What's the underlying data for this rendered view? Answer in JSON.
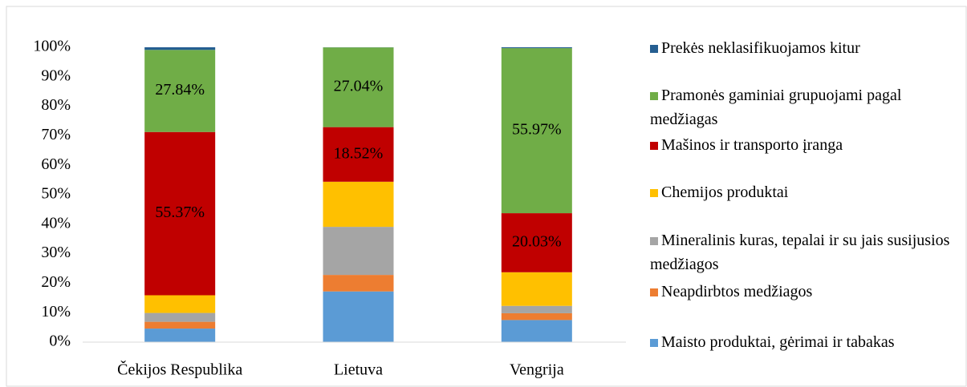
{
  "chart_data": {
    "type": "stacked_bar_100",
    "categories": [
      "Čekijos Respublika",
      "Lietuva",
      "Vengrija"
    ],
    "series": [
      {
        "name": "Maisto produktai, gėrimai ir tabakas",
        "color": "#5b9bd5",
        "values": [
          4.6,
          17.2,
          7.5
        ],
        "value_labels": [
          null,
          null,
          null
        ]
      },
      {
        "name": "Neapdirbtos medžiagos",
        "color": "#ed7d31",
        "values": [
          2.3,
          5.6,
          2.3
        ],
        "value_labels": [
          null,
          null,
          null
        ]
      },
      {
        "name": "Mineralinis kuras, tepalai ir su jais susijusios medžiagos",
        "color": "#a5a5a5",
        "values": [
          3.0,
          16.3,
          2.5
        ],
        "value_labels": [
          null,
          null,
          null
        ]
      },
      {
        "name": "Chemijos produktai",
        "color": "#ffc000",
        "values": [
          6.0,
          15.3,
          11.4
        ],
        "value_labels": [
          null,
          null,
          null
        ]
      },
      {
        "name": "Mašinos ir transporto įranga",
        "color": "#c00000",
        "values": [
          55.37,
          18.52,
          20.03
        ],
        "value_labels": [
          "55.37%",
          "18.52%",
          "20.03%"
        ]
      },
      {
        "name": "Pramonės gaminiai grupuojami pagal medžiagas",
        "color": "#70ad47",
        "values": [
          27.84,
          27.04,
          55.97
        ],
        "value_labels": [
          "27.84%",
          "27.04%",
          "55.97%"
        ]
      },
      {
        "name": "Prekės neklasifikuojamos kitur",
        "color": "#255e91",
        "values": [
          0.89,
          0.04,
          0.3
        ],
        "value_labels": [
          null,
          null,
          null
        ]
      }
    ],
    "ylim": [
      0,
      100
    ],
    "yticks": [
      {
        "value": 0,
        "label": "0%"
      },
      {
        "value": 10,
        "label": "10%"
      },
      {
        "value": 20,
        "label": "20%"
      },
      {
        "value": 30,
        "label": "30%"
      },
      {
        "value": 40,
        "label": "40%"
      },
      {
        "value": 50,
        "label": "50%"
      },
      {
        "value": 60,
        "label": "60%"
      },
      {
        "value": 70,
        "label": "70%"
      },
      {
        "value": 80,
        "label": "80%"
      },
      {
        "value": 90,
        "label": "90%"
      },
      {
        "value": 100,
        "label": "100%"
      }
    ],
    "legend": "right"
  }
}
